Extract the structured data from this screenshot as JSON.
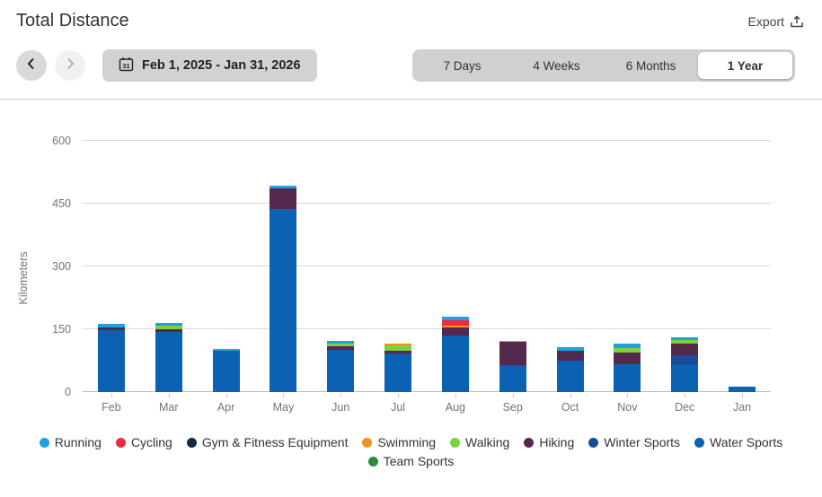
{
  "header": {
    "title": "Total Distance",
    "export_label": "Export"
  },
  "controls": {
    "date_range": "Feb 1, 2025 - Jan 31, 2026",
    "calendar_day": "31",
    "tabs": [
      {
        "label": "7 Days",
        "active": false
      },
      {
        "label": "4 Weeks",
        "active": false
      },
      {
        "label": "6 Months",
        "active": false
      },
      {
        "label": "1 Year",
        "active": true
      }
    ]
  },
  "chart_data": {
    "type": "bar",
    "stacked": true,
    "title": "Total Distance",
    "xlabel": "",
    "ylabel": "Kilometers",
    "ylim": [
      0,
      600
    ],
    "yticks": [
      0,
      150,
      300,
      450,
      600
    ],
    "grid": true,
    "legend_position": "bottom",
    "categories": [
      "Feb",
      "Mar",
      "Apr",
      "May",
      "Jun",
      "Jul",
      "Aug",
      "Sep",
      "Oct",
      "Nov",
      "Dec",
      "Jan"
    ],
    "stack_order": [
      "Team Sports",
      "Water Sports",
      "Winter Sports",
      "Hiking",
      "Walking",
      "Swimming",
      "Gym & Fitness Equipment",
      "Cycling",
      "Running"
    ],
    "series": [
      {
        "name": "Running",
        "color": "#21a0dc",
        "values": [
          8,
          8,
          4,
          6,
          6,
          0,
          9,
          0,
          8,
          10,
          6,
          0
        ]
      },
      {
        "name": "Cycling",
        "color": "#ee2b3e",
        "values": [
          0,
          0,
          0,
          0,
          0,
          0,
          12,
          0,
          0,
          0,
          0,
          0
        ]
      },
      {
        "name": "Gym & Fitness Equipment",
        "color": "#14293e",
        "values": [
          0,
          0,
          0,
          0,
          0,
          0,
          0,
          0,
          0,
          0,
          0,
          0
        ]
      },
      {
        "name": "Swimming",
        "color": "#f6921e",
        "values": [
          0,
          0,
          0,
          0,
          0,
          5,
          4,
          0,
          0,
          0,
          0,
          0
        ]
      },
      {
        "name": "Walking",
        "color": "#7bd13e",
        "values": [
          0,
          8,
          0,
          0,
          6,
          12,
          0,
          3,
          0,
          11,
          9,
          0
        ]
      },
      {
        "name": "Hiking",
        "color": "#53294d",
        "values": [
          8,
          7,
          0,
          50,
          10,
          6,
          20,
          56,
          23,
          28,
          27,
          0
        ]
      },
      {
        "name": "Winter Sports",
        "color": "#1c4a99",
        "values": [
          0,
          0,
          0,
          0,
          0,
          0,
          0,
          0,
          0,
          0,
          22,
          0
        ]
      },
      {
        "name": "Water Sports",
        "color": "#0b61b2",
        "values": [
          147,
          143,
          98,
          437,
          100,
          93,
          135,
          64,
          76,
          67,
          66,
          12
        ]
      },
      {
        "name": "Team Sports",
        "color": "#2d8b3d",
        "values": [
          0,
          0,
          0,
          0,
          0,
          0,
          0,
          0,
          0,
          0,
          0,
          0
        ]
      }
    ]
  }
}
